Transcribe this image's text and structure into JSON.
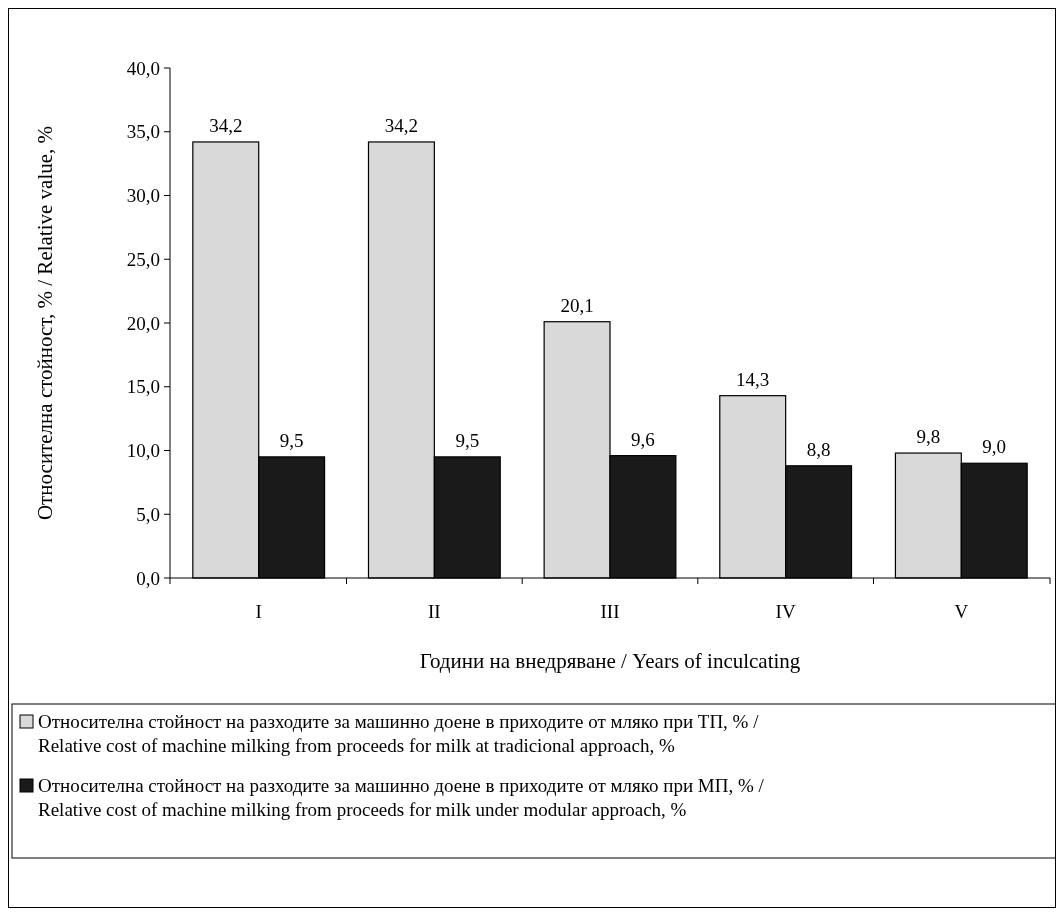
{
  "chart_data": {
    "type": "bar",
    "xlabel": "Години на внедряване / Years of inculcating",
    "ylabel": "Относителна стойност, % / Relative value, %",
    "categories": [
      "I",
      "II",
      "III",
      "IV",
      "V"
    ],
    "series": [
      {
        "name": "Относителна стойност на разходите за машинно доене в приходите от мляко при ТП, %  /  Relative cost of machine milking from proceeds for milk at tradicional approach, %",
        "color": "#d9d9d9",
        "values": [
          34.2,
          34.2,
          20.1,
          14.3,
          9.8
        ],
        "value_labels": [
          "34,2",
          "34,2",
          "20,1",
          "14,3",
          "9,8"
        ]
      },
      {
        "name": "Относителна стойност на разходите за машинно доене в приходите от мляко при МП, %  /  Relative cost of machine milking from proceeds for milk under modular approach, %",
        "color": "#1a1a1a",
        "values": [
          9.5,
          9.5,
          9.6,
          8.8,
          9.0
        ],
        "value_labels": [
          "9,5",
          "9,5",
          "9,6",
          "8,8",
          "9,0"
        ]
      }
    ],
    "ylim": [
      0,
      40
    ],
    "yticks": [
      {
        "value": 0,
        "label": "0,0"
      },
      {
        "value": 5,
        "label": "5,0"
      },
      {
        "value": 10,
        "label": "10,0"
      },
      {
        "value": 15,
        "label": "15,0"
      },
      {
        "value": 20,
        "label": "20,0"
      },
      {
        "value": 25,
        "label": "25,0"
      },
      {
        "value": 30,
        "label": "30,0"
      },
      {
        "value": 35,
        "label": "35,0"
      },
      {
        "value": 40,
        "label": "40,0"
      }
    ],
    "grid": false,
    "legend": "bottom"
  }
}
